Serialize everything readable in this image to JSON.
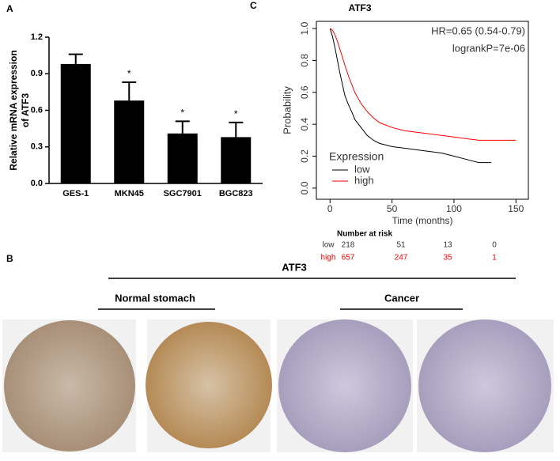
{
  "chart_data": [
    {
      "type": "bar",
      "panel_label": "A",
      "ylabel": [
        "Relative mRNA expression",
        "of ATF3"
      ],
      "categories": [
        "GES-1",
        "MKN45",
        "SGC7901",
        "BGC823"
      ],
      "values": [
        0.98,
        0.68,
        0.41,
        0.38
      ],
      "errors": [
        0.08,
        0.15,
        0.1,
        0.12
      ],
      "value_annotations": [
        null,
        "*",
        "*",
        "*"
      ],
      "color": "#000000",
      "ylim": [
        0,
        1.2
      ],
      "yticks": [
        {
          "value": 0,
          "label": "0.0"
        },
        0.3,
        0.6,
        0.9,
        1.2
      ]
    },
    {
      "type": "line",
      "panel_label": "C",
      "title": "ATF3",
      "xlabel": "Time (months)",
      "ylabel": "Probability",
      "annotations": [
        "HR=0.65 (0.54-0.79)",
        "logrankP=7e-06"
      ],
      "legend_title": "Expression",
      "legend": "bottom-left",
      "series": [
        {
          "name": "low",
          "color": "#000000",
          "x": [
            0,
            2,
            4,
            6,
            8,
            10,
            12,
            15,
            18,
            20,
            25,
            30,
            35,
            40,
            50,
            60,
            70,
            80,
            90,
            100,
            110,
            120,
            130
          ],
          "values": [
            1,
            0.95,
            0.88,
            0.8,
            0.72,
            0.65,
            0.58,
            0.52,
            0.47,
            0.43,
            0.38,
            0.33,
            0.3,
            0.28,
            0.26,
            0.25,
            0.24,
            0.23,
            0.22,
            0.2,
            0.18,
            0.16,
            0.16
          ]
        },
        {
          "name": "high",
          "color": "#ff0000",
          "x": [
            0,
            2,
            4,
            6,
            8,
            10,
            12,
            15,
            20,
            25,
            30,
            35,
            40,
            50,
            60,
            70,
            80,
            90,
            100,
            110,
            120,
            130,
            140,
            150
          ],
          "values": [
            1,
            0.99,
            0.96,
            0.92,
            0.87,
            0.82,
            0.77,
            0.7,
            0.6,
            0.53,
            0.48,
            0.44,
            0.41,
            0.38,
            0.36,
            0.35,
            0.34,
            0.33,
            0.32,
            0.31,
            0.3,
            0.3,
            0.3,
            0.3
          ]
        }
      ],
      "xlim": [
        -11,
        160
      ],
      "xticks": [
        0,
        50,
        100,
        150
      ],
      "ylim": [
        -0.07,
        1.045
      ],
      "yticks": [
        {
          "value": 0,
          "label": "0.0"
        },
        0.2,
        0.4,
        0.6,
        0.8,
        {
          "value": 1,
          "label": "1.0"
        }
      ],
      "risk_table": {
        "title": "Number at risk",
        "rows": [
          {
            "name": "low",
            "counts": [
              218,
              51,
              13,
              0
            ]
          },
          {
            "name": "high",
            "counts": [
              657,
              247,
              35,
              1
            ]
          }
        ]
      }
    }
  ],
  "panel_b": {
    "label": "B",
    "title": "ATF3",
    "groups": [
      "Normal stomach",
      "Cancer"
    ]
  }
}
